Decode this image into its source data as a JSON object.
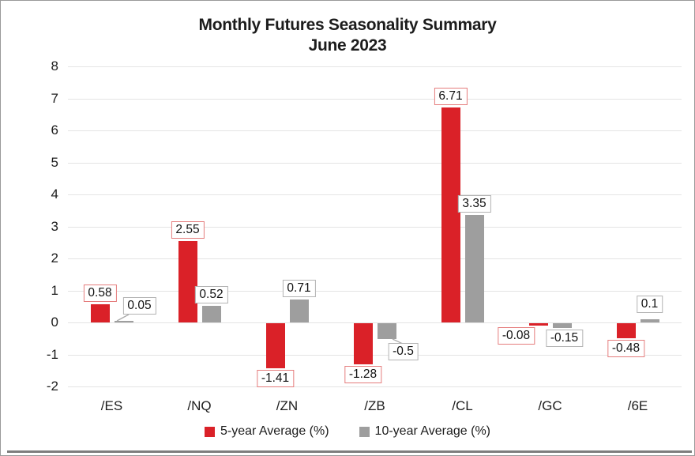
{
  "chart_data": {
    "type": "bar",
    "title": "Monthly Futures Seasonality Summary",
    "subtitle": "June 2023",
    "categories": [
      "/ES",
      "/NQ",
      "/ZN",
      "/ZB",
      "/CL",
      "/GC",
      "/6E"
    ],
    "series": [
      {
        "name": "5-year Average (%)",
        "color": "#da2128",
        "label_box_border": "#e57d7d",
        "values": [
          0.58,
          2.55,
          -1.41,
          -1.28,
          6.71,
          -0.08,
          -0.48
        ],
        "labels": [
          "0.58",
          "2.55",
          "-1.41",
          "-1.28",
          "6.71",
          "-0.08",
          "-0.48"
        ]
      },
      {
        "name": "10-year Average (%)",
        "color": "#9e9e9e",
        "label_box_border": "#b3b3b3",
        "values": [
          0.05,
          0.52,
          0.71,
          -0.5,
          3.35,
          -0.15,
          0.1
        ],
        "labels": [
          "0.05",
          "0.52",
          "0.71",
          "-0.5",
          "3.35",
          "-0.15",
          "0.1"
        ]
      }
    ],
    "ylim": [
      -2,
      8
    ],
    "yticks": [
      8,
      7,
      6,
      5,
      4,
      3,
      2,
      1,
      0,
      -1,
      -2
    ],
    "grid": true,
    "data_labels": true,
    "legend_position": "bottom",
    "xlabel": "",
    "ylabel": ""
  }
}
